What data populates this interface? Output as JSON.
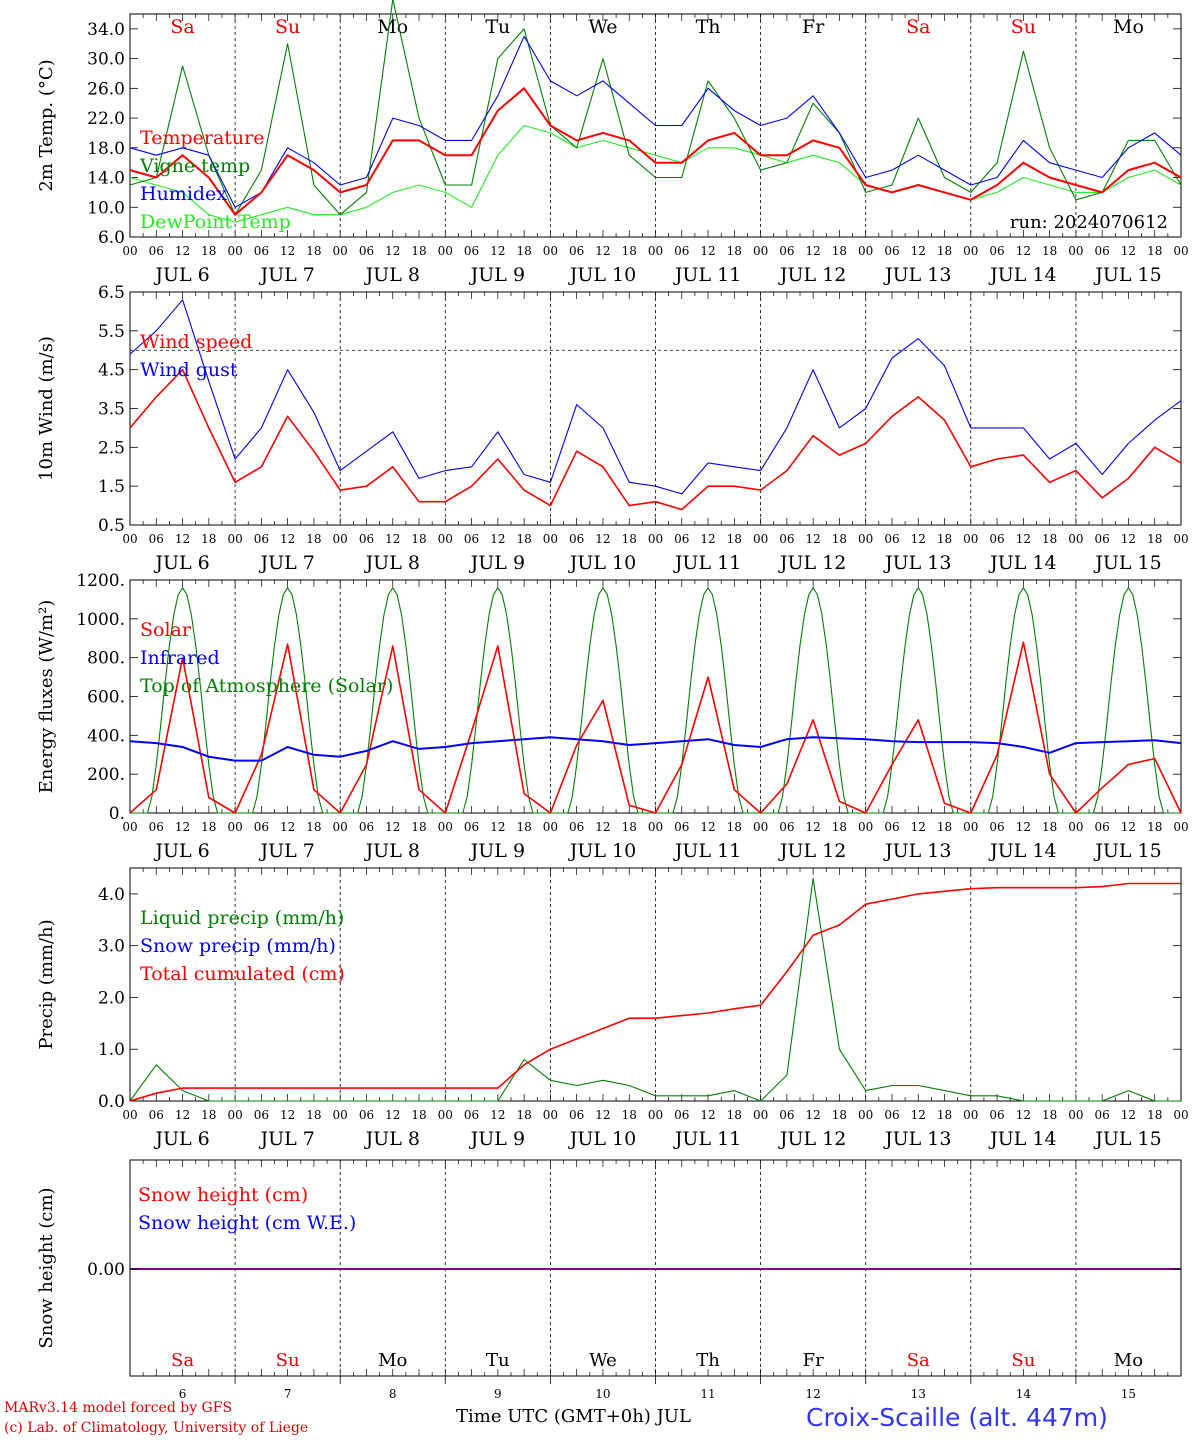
{
  "days": [
    "6",
    "7",
    "8",
    "9",
    "10",
    "11",
    "12",
    "13",
    "14",
    "15"
  ],
  "month": "JUL",
  "weekdays": [
    "Sa",
    "Su",
    "Mo",
    "Tu",
    "We",
    "Th",
    "Fr",
    "Sa",
    "Su",
    "Mo"
  ],
  "weekend_flags": [
    true,
    true,
    false,
    false,
    false,
    false,
    false,
    true,
    true,
    false
  ],
  "hour_labels": [
    "00",
    "06",
    "12",
    "18"
  ],
  "run_label": "run: 2024070612",
  "footer": {
    "line1": "MARv3.14 model forced by GFS",
    "line2": "(c) Lab. of Climatology, University of Liege",
    "x_title": "Time UTC (GMT+0h) JUL",
    "station": "Croix-Scaille (alt. 447m)"
  },
  "colors": {
    "red": "#ff0000",
    "green": "#008000",
    "blue": "#0000ff",
    "lightgreen": "#22ee22",
    "purple": "#800080"
  },
  "chart_data": [
    {
      "type": "line",
      "ylabel": "2m Temp. (°C)",
      "ylim": [
        6,
        36
      ],
      "yticks": [
        "6.0",
        "10.0",
        "14.0",
        "18.0",
        "22.0",
        "26.0",
        "30.0",
        "34.0"
      ],
      "x_hours": [
        0,
        6,
        12,
        18,
        24,
        30,
        36,
        42,
        48,
        54,
        60,
        66,
        72,
        78,
        84,
        90,
        96,
        102,
        108,
        114,
        120,
        126,
        132,
        138,
        144,
        150,
        156,
        162,
        168,
        174,
        180,
        186,
        192,
        198,
        204,
        210,
        216,
        222,
        228,
        234,
        240
      ],
      "series": [
        {
          "name": "Temperature",
          "color": "#ff0000",
          "values": [
            15,
            14,
            17,
            14,
            9,
            12,
            17,
            15,
            12,
            13,
            19,
            19,
            17,
            17,
            23,
            26,
            21,
            19,
            20,
            19,
            16,
            16,
            19,
            20,
            17,
            17,
            19,
            18,
            13,
            12,
            13,
            12,
            11,
            13,
            16,
            14,
            13,
            12,
            15,
            16,
            14
          ]
        },
        {
          "name": "Vigne temp",
          "color": "#008000",
          "values": [
            13,
            14,
            29,
            17,
            9,
            15,
            32,
            13,
            9,
            12,
            38,
            22,
            13,
            13,
            30,
            34,
            21,
            18,
            30,
            17,
            14,
            14,
            27,
            22,
            15,
            16,
            24,
            20,
            12,
            13,
            22,
            14,
            12,
            16,
            31,
            18,
            11,
            12,
            19,
            19,
            13
          ]
        },
        {
          "name": "Humidex",
          "color": "#0000ff",
          "values": [
            18,
            17,
            18,
            17,
            10,
            12,
            18,
            16,
            13,
            14,
            22,
            21,
            19,
            19,
            25,
            33,
            27,
            25,
            27,
            24,
            21,
            21,
            26,
            23,
            21,
            22,
            25,
            20,
            14,
            15,
            17,
            15,
            13,
            14,
            19,
            16,
            15,
            14,
            18,
            20,
            17
          ]
        },
        {
          "name": "DewPoint Temp",
          "color": "#22ee22",
          "values": [
            14,
            13,
            12,
            9,
            8,
            9,
            10,
            9,
            9,
            10,
            12,
            13,
            12,
            10,
            17,
            21,
            20,
            18,
            19,
            18,
            17,
            16,
            18,
            18,
            17,
            16,
            17,
            16,
            13,
            12,
            13,
            12,
            11,
            12,
            14,
            13,
            12,
            12,
            14,
            15,
            13
          ]
        }
      ]
    },
    {
      "type": "line",
      "ylabel": "10m Wind (m/s)",
      "ylim": [
        0.5,
        6.5
      ],
      "yticks": [
        "0.5",
        "1.5",
        "2.5",
        "3.5",
        "4.5",
        "5.5",
        "6.5"
      ],
      "ref_line": 5.0,
      "x_hours": [
        0,
        6,
        12,
        18,
        24,
        30,
        36,
        42,
        48,
        54,
        60,
        66,
        72,
        78,
        84,
        90,
        96,
        102,
        108,
        114,
        120,
        126,
        132,
        138,
        144,
        150,
        156,
        162,
        168,
        174,
        180,
        186,
        192,
        198,
        204,
        210,
        216,
        222,
        228,
        234,
        240
      ],
      "series": [
        {
          "name": "Wind speed",
          "color": "#ff0000",
          "values": [
            3.0,
            3.8,
            4.5,
            3.0,
            1.6,
            2.0,
            3.3,
            2.4,
            1.4,
            1.5,
            2.0,
            1.1,
            1.1,
            1.5,
            2.2,
            1.4,
            1.0,
            2.4,
            2.0,
            1.0,
            1.1,
            0.9,
            1.5,
            1.5,
            1.4,
            1.9,
            2.8,
            2.3,
            2.6,
            3.3,
            3.8,
            3.2,
            2.0,
            2.2,
            2.3,
            1.6,
            1.9,
            1.2,
            1.7,
            2.5,
            2.1
          ]
        },
        {
          "name": "Wind gust",
          "color": "#0000ff",
          "values": [
            4.9,
            5.5,
            6.3,
            4.2,
            2.2,
            3.0,
            4.5,
            3.4,
            1.9,
            2.4,
            2.9,
            1.7,
            1.9,
            2.0,
            2.9,
            1.8,
            1.6,
            3.6,
            3.0,
            1.6,
            1.5,
            1.3,
            2.1,
            2.0,
            1.9,
            3.0,
            4.5,
            3.0,
            3.5,
            4.8,
            5.3,
            4.6,
            3.0,
            3.0,
            3.0,
            2.2,
            2.6,
            1.8,
            2.6,
            3.2,
            3.7
          ]
        }
      ]
    },
    {
      "type": "line",
      "ylabel": "Energy fluxes (W/m²)",
      "ylim": [
        0,
        1200
      ],
      "yticks": [
        "0.",
        "200.",
        "400.",
        "600.",
        "800.",
        "1000.",
        "1200."
      ],
      "x_hours": [
        0,
        6,
        12,
        18,
        24,
        30,
        36,
        42,
        48,
        54,
        60,
        66,
        72,
        78,
        84,
        90,
        96,
        102,
        108,
        114,
        120,
        126,
        132,
        138,
        144,
        150,
        156,
        162,
        168,
        174,
        180,
        186,
        192,
        198,
        204,
        210,
        216,
        222,
        228,
        234,
        240
      ],
      "series": [
        {
          "name": "Solar",
          "color": "#ff0000",
          "values": [
            0,
            120,
            800,
            80,
            0,
            300,
            870,
            120,
            0,
            250,
            860,
            120,
            0,
            420,
            860,
            100,
            0,
            350,
            580,
            40,
            0,
            250,
            700,
            120,
            0,
            150,
            480,
            60,
            0,
            250,
            480,
            50,
            0,
            300,
            880,
            200,
            0,
            130,
            250,
            280,
            0
          ]
        },
        {
          "name": "Infrared",
          "color": "#0000ff",
          "values": [
            370,
            360,
            340,
            290,
            270,
            270,
            340,
            300,
            290,
            320,
            370,
            330,
            340,
            360,
            370,
            380,
            390,
            380,
            370,
            350,
            360,
            370,
            380,
            350,
            340,
            380,
            390,
            385,
            380,
            370,
            365,
            365,
            365,
            360,
            340,
            310,
            360,
            365,
            370,
            375,
            360
          ]
        },
        {
          "name": "Top of Atmosphere (Solar)",
          "color": "#008000",
          "values": []
        }
      ],
      "toa_peak": 1160
    },
    {
      "type": "line",
      "ylabel": "Precip (mm/h)",
      "ylim": [
        0,
        4.5
      ],
      "yticks": [
        "0.0",
        "1.0",
        "2.0",
        "3.0",
        "4.0"
      ],
      "x_hours": [
        0,
        6,
        12,
        18,
        24,
        30,
        36,
        42,
        48,
        54,
        60,
        66,
        72,
        78,
        84,
        90,
        96,
        102,
        108,
        114,
        120,
        126,
        132,
        138,
        144,
        150,
        156,
        162,
        168,
        174,
        180,
        186,
        192,
        198,
        204,
        210,
        216,
        222,
        228,
        234,
        240
      ],
      "series": [
        {
          "name": "Liquid precip (mm/h)",
          "color": "#008000",
          "values": [
            0,
            0.7,
            0.2,
            0,
            0,
            0,
            0,
            0,
            0,
            0,
            0,
            0,
            0,
            0,
            0,
            0.8,
            0.4,
            0.3,
            0.4,
            0.3,
            0.1,
            0.1,
            0.1,
            0.2,
            0,
            0.5,
            4.3,
            1.0,
            0.2,
            0.3,
            0.3,
            0.2,
            0.1,
            0.1,
            0,
            0,
            0,
            0,
            0.2,
            0,
            0
          ]
        },
        {
          "name": "Snow precip (mm/h)",
          "color": "#0000ff",
          "values": []
        },
        {
          "name": "Total cumulated (cm)",
          "color": "#ff0000",
          "values": [
            0,
            0.15,
            0.25,
            0.25,
            0.25,
            0.25,
            0.25,
            0.25,
            0.25,
            0.25,
            0.25,
            0.25,
            0.25,
            0.25,
            0.25,
            0.7,
            1.0,
            1.2,
            1.4,
            1.6,
            1.6,
            1.65,
            1.7,
            1.78,
            1.85,
            2.5,
            3.2,
            3.4,
            3.8,
            3.9,
            4.0,
            4.05,
            4.1,
            4.12,
            4.12,
            4.12,
            4.12,
            4.14,
            4.2,
            4.2,
            4.2
          ]
        }
      ]
    },
    {
      "type": "line",
      "ylabel": "Snow height (cm)",
      "yticks": [
        "0.00"
      ],
      "series": [
        {
          "name": "Snow height (cm)",
          "color": "#ff0000",
          "values": [
            0,
            0
          ]
        },
        {
          "name": "Snow height (cm W.E.)",
          "color": "#0000ff",
          "values": [
            0,
            0
          ]
        }
      ]
    }
  ]
}
